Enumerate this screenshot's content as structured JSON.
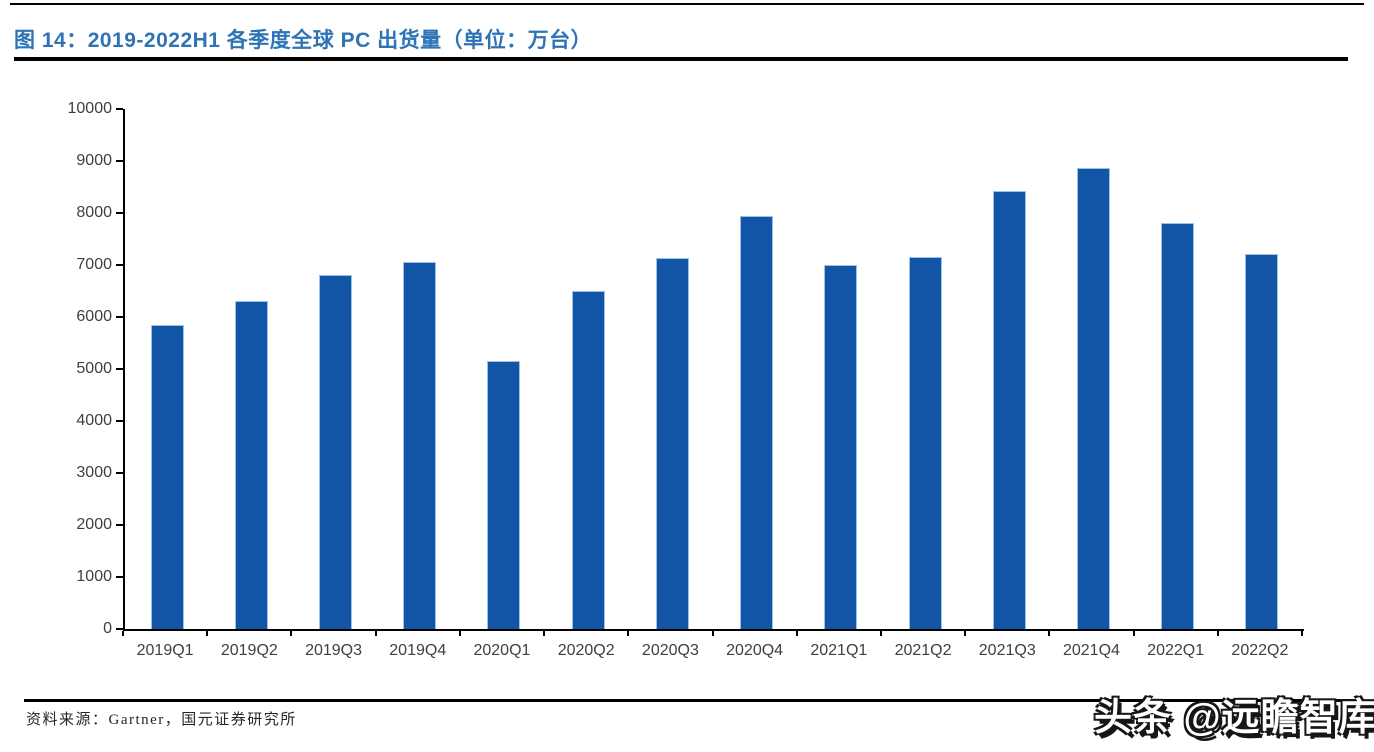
{
  "page": {
    "title": "图 14：2019-2022H1 各季度全球 PC 出货量（单位：万台）",
    "source_note": "资料来源：Gartner，国元证券研究所",
    "watermark": "头条 @远瞻智库"
  },
  "colors": {
    "bar_fill": "#1254A5",
    "bar_edge": "#9CC2E5",
    "title_blue": "#2E74B5",
    "axis_black": "#000000",
    "tick_label_gray": "#3F3F3F"
  },
  "chart_data": {
    "type": "bar",
    "title": "2019-2022H1 各季度全球 PC 出货量",
    "unit": "万台",
    "categories": [
      "2019Q1",
      "2019Q2",
      "2019Q3",
      "2019Q4",
      "2020Q1",
      "2020Q2",
      "2020Q3",
      "2020Q4",
      "2021Q1",
      "2021Q2",
      "2021Q3",
      "2021Q4",
      "2022Q1",
      "2022Q2"
    ],
    "values": [
      5850,
      6300,
      6800,
      7060,
      5160,
      6500,
      7140,
      7950,
      7000,
      7160,
      8420,
      8860,
      7800,
      7220
    ],
    "xlabel": "",
    "ylabel": "",
    "ylim": [
      0,
      10000
    ],
    "ytick_step": 1000,
    "grid": false,
    "legend_position": "none"
  }
}
